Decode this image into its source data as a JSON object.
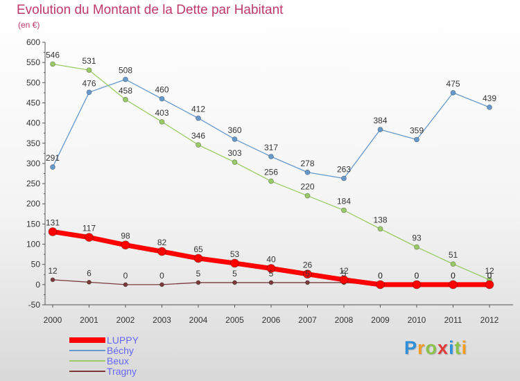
{
  "title": "Evolution du Montant de la Dette par Habitant",
  "subtitle": "(en €)",
  "logo": {
    "letters": [
      {
        "ch": "P",
        "color": "#2f8fd8"
      },
      {
        "ch": "r",
        "color": "#f39c1f"
      },
      {
        "ch": "o",
        "color": "#8bc34a"
      },
      {
        "ch": "x",
        "color": "#e23b3b"
      },
      {
        "ch": "i",
        "color": "#2f8fd8"
      },
      {
        "ch": "t",
        "color": "#8bc34a"
      },
      {
        "ch": "i",
        "color": "#f39c1f"
      }
    ]
  },
  "chart_data": {
    "type": "line",
    "title": "Evolution du Montant de la Dette par Habitant",
    "subtitle": "(en €)",
    "x": [
      "2000",
      "2001",
      "2002",
      "2003",
      "2004",
      "2005",
      "2006",
      "2007",
      "2008",
      "2009",
      "2010",
      "2011",
      "2012"
    ],
    "ylim": [
      -50,
      600
    ],
    "yticks": [
      -50,
      0,
      50,
      100,
      150,
      200,
      250,
      300,
      350,
      400,
      450,
      500,
      550,
      600
    ],
    "grid": false,
    "legend": "bottom-left",
    "series": [
      {
        "name": "LUPPY",
        "color": "#ff0000",
        "values": [
          131,
          117,
          98,
          82,
          65,
          53,
          40,
          26,
          12,
          0,
          0,
          0,
          0
        ]
      },
      {
        "name": "Béchy",
        "color": "#6699cc",
        "values": [
          291,
          476,
          508,
          460,
          412,
          360,
          317,
          278,
          263,
          384,
          359,
          475,
          439
        ]
      },
      {
        "name": "Beux",
        "color": "#99cc66",
        "values": [
          546,
          531,
          458,
          403,
          346,
          303,
          256,
          220,
          184,
          138,
          93,
          51,
          12
        ]
      },
      {
        "name": "Tragny",
        "color": "#7a3a3a",
        "values": [
          12,
          6,
          0,
          0,
          5,
          5,
          5,
          5,
          5,
          0,
          0,
          0,
          0
        ]
      }
    ]
  }
}
